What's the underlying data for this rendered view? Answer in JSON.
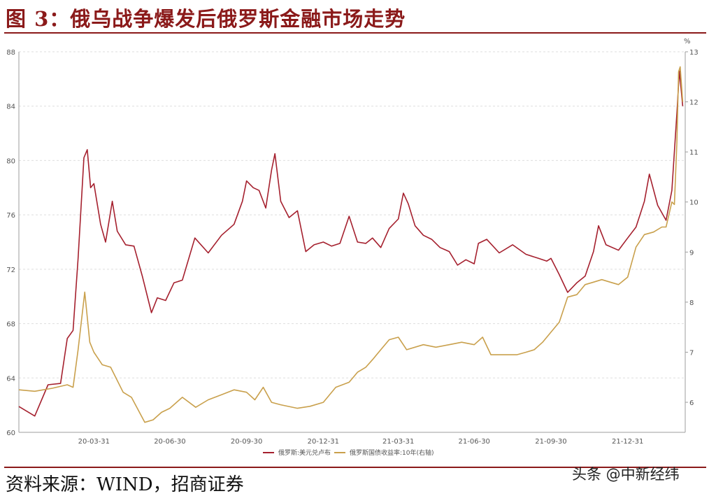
{
  "title": "图 3：俄乌战争爆发后俄罗斯金融市场走势",
  "source": "资料来源：WIND，招商证券",
  "watermark": "头条 @中新经纬",
  "colors": {
    "rub": "#a5202e",
    "bond": "#c9a04c",
    "accent": "#8b1a1a"
  },
  "chart_data": {
    "type": "line",
    "x_ticks": [
      "20-03-31",
      "20-06-30",
      "20-09-30",
      "20-12-31",
      "21-03-31",
      "21-06-30",
      "21-09-30",
      "21-12-31"
    ],
    "y_left": {
      "ticks": [
        60,
        64,
        68,
        72,
        76,
        80,
        84,
        88
      ],
      "range": [
        60,
        88
      ]
    },
    "y_right": {
      "ticks": [
        6,
        7,
        8,
        9,
        10,
        11,
        12,
        13
      ],
      "range": [
        5.4,
        13
      ],
      "unit": "%"
    },
    "legend_position": "bottom-center",
    "grid": "horizontal dashed",
    "series": [
      {
        "name": "俄罗斯:美元兑卢布",
        "axis": "left",
        "points": [
          [
            "2020-01-01",
            61.9
          ],
          [
            "2020-01-20",
            61.2
          ],
          [
            "2020-02-05",
            63.5
          ],
          [
            "2020-02-20",
            63.6
          ],
          [
            "2020-02-28",
            66.9
          ],
          [
            "2020-03-06",
            67.5
          ],
          [
            "2020-03-12",
            72.8
          ],
          [
            "2020-03-19",
            80.2
          ],
          [
            "2020-03-23",
            80.8
          ],
          [
            "2020-03-27",
            78.0
          ],
          [
            "2020-03-31",
            78.3
          ],
          [
            "2020-04-08",
            75.3
          ],
          [
            "2020-04-14",
            74.0
          ],
          [
            "2020-04-22",
            77.0
          ],
          [
            "2020-04-28",
            74.8
          ],
          [
            "2020-05-08",
            73.8
          ],
          [
            "2020-05-18",
            73.7
          ],
          [
            "2020-05-28",
            71.5
          ],
          [
            "2020-06-08",
            68.8
          ],
          [
            "2020-06-15",
            69.9
          ],
          [
            "2020-06-25",
            69.7
          ],
          [
            "2020-07-05",
            71.0
          ],
          [
            "2020-07-15",
            71.2
          ],
          [
            "2020-07-30",
            74.3
          ],
          [
            "2020-08-15",
            73.2
          ],
          [
            "2020-08-31",
            74.5
          ],
          [
            "2020-09-15",
            75.3
          ],
          [
            "2020-09-25",
            77.0
          ],
          [
            "2020-09-30",
            78.5
          ],
          [
            "2020-10-08",
            78.0
          ],
          [
            "2020-10-15",
            77.8
          ],
          [
            "2020-10-23",
            76.5
          ],
          [
            "2020-10-30",
            79.3
          ],
          [
            "2020-11-03",
            80.5
          ],
          [
            "2020-11-10",
            77.0
          ],
          [
            "2020-11-20",
            75.8
          ],
          [
            "2020-11-30",
            76.3
          ],
          [
            "2020-12-10",
            73.3
          ],
          [
            "2020-12-20",
            73.8
          ],
          [
            "2020-12-31",
            74.0
          ],
          [
            "2021-01-10",
            73.7
          ],
          [
            "2021-01-20",
            73.9
          ],
          [
            "2021-01-31",
            75.9
          ],
          [
            "2021-02-10",
            74.0
          ],
          [
            "2021-02-20",
            73.9
          ],
          [
            "2021-02-28",
            74.3
          ],
          [
            "2021-03-10",
            73.6
          ],
          [
            "2021-03-20",
            75.0
          ],
          [
            "2021-03-31",
            75.7
          ],
          [
            "2021-04-06",
            77.6
          ],
          [
            "2021-04-12",
            76.8
          ],
          [
            "2021-04-20",
            75.2
          ],
          [
            "2021-04-30",
            74.5
          ],
          [
            "2021-05-10",
            74.2
          ],
          [
            "2021-05-20",
            73.6
          ],
          [
            "2021-05-31",
            73.3
          ],
          [
            "2021-06-10",
            72.3
          ],
          [
            "2021-06-20",
            72.7
          ],
          [
            "2021-06-30",
            72.4
          ],
          [
            "2021-07-05",
            73.9
          ],
          [
            "2021-07-15",
            74.2
          ],
          [
            "2021-07-30",
            73.2
          ],
          [
            "2021-08-15",
            73.8
          ],
          [
            "2021-08-31",
            73.1
          ],
          [
            "2021-09-15",
            72.8
          ],
          [
            "2021-09-25",
            72.6
          ],
          [
            "2021-09-30",
            72.8
          ],
          [
            "2021-10-10",
            71.6
          ],
          [
            "2021-10-20",
            70.3
          ],
          [
            "2021-10-31",
            71.0
          ],
          [
            "2021-11-10",
            71.5
          ],
          [
            "2021-11-20",
            73.3
          ],
          [
            "2021-11-26",
            75.2
          ],
          [
            "2021-12-05",
            73.8
          ],
          [
            "2021-12-20",
            73.4
          ],
          [
            "2021-12-31",
            74.3
          ],
          [
            "2022-01-10",
            75.1
          ],
          [
            "2022-01-20",
            77.0
          ],
          [
            "2022-01-26",
            79.0
          ],
          [
            "2022-02-05",
            76.7
          ],
          [
            "2022-02-15",
            75.6
          ],
          [
            "2022-02-22",
            77.8
          ],
          [
            "2022-02-28",
            83.5
          ],
          [
            "2022-03-03",
            86.6
          ],
          [
            "2022-03-07",
            84.0
          ]
        ]
      },
      {
        "name": "俄罗斯国债收益率:10年(右轴)",
        "axis": "right",
        "points": [
          [
            "2020-01-01",
            6.25
          ],
          [
            "2020-01-20",
            6.22
          ],
          [
            "2020-02-10",
            6.28
          ],
          [
            "2020-02-28",
            6.35
          ],
          [
            "2020-03-06",
            6.3
          ],
          [
            "2020-03-12",
            7.05
          ],
          [
            "2020-03-20",
            8.2
          ],
          [
            "2020-03-26",
            7.2
          ],
          [
            "2020-03-31",
            7.0
          ],
          [
            "2020-04-10",
            6.75
          ],
          [
            "2020-04-20",
            6.7
          ],
          [
            "2020-05-05",
            6.2
          ],
          [
            "2020-05-15",
            6.1
          ],
          [
            "2020-05-31",
            5.6
          ],
          [
            "2020-06-10",
            5.65
          ],
          [
            "2020-06-20",
            5.8
          ],
          [
            "2020-06-30",
            5.88
          ],
          [
            "2020-07-15",
            6.1
          ],
          [
            "2020-07-31",
            5.9
          ],
          [
            "2020-08-15",
            6.05
          ],
          [
            "2020-08-31",
            6.15
          ],
          [
            "2020-09-15",
            6.25
          ],
          [
            "2020-09-30",
            6.2
          ],
          [
            "2020-10-10",
            6.05
          ],
          [
            "2020-10-20",
            6.3
          ],
          [
            "2020-10-30",
            6.0
          ],
          [
            "2020-11-10",
            5.95
          ],
          [
            "2020-11-30",
            5.88
          ],
          [
            "2020-12-15",
            5.92
          ],
          [
            "2020-12-31",
            6.0
          ],
          [
            "2021-01-15",
            6.3
          ],
          [
            "2021-01-31",
            6.4
          ],
          [
            "2021-02-10",
            6.6
          ],
          [
            "2021-02-20",
            6.7
          ],
          [
            "2021-02-28",
            6.85
          ],
          [
            "2021-03-10",
            7.05
          ],
          [
            "2021-03-20",
            7.25
          ],
          [
            "2021-03-31",
            7.3
          ],
          [
            "2021-04-10",
            7.05
          ],
          [
            "2021-04-30",
            7.15
          ],
          [
            "2021-05-15",
            7.1
          ],
          [
            "2021-05-31",
            7.15
          ],
          [
            "2021-06-15",
            7.2
          ],
          [
            "2021-06-30",
            7.15
          ],
          [
            "2021-07-10",
            7.3
          ],
          [
            "2021-07-20",
            6.95
          ],
          [
            "2021-08-05",
            6.95
          ],
          [
            "2021-08-20",
            6.95
          ],
          [
            "2021-08-31",
            7.0
          ],
          [
            "2021-09-10",
            7.05
          ],
          [
            "2021-09-20",
            7.2
          ],
          [
            "2021-09-30",
            7.4
          ],
          [
            "2021-10-10",
            7.6
          ],
          [
            "2021-10-20",
            8.1
          ],
          [
            "2021-10-31",
            8.15
          ],
          [
            "2021-11-10",
            8.35
          ],
          [
            "2021-11-20",
            8.4
          ],
          [
            "2021-11-30",
            8.45
          ],
          [
            "2021-12-10",
            8.4
          ],
          [
            "2021-12-20",
            8.35
          ],
          [
            "2021-12-31",
            8.5
          ],
          [
            "2022-01-10",
            9.1
          ],
          [
            "2022-01-20",
            9.35
          ],
          [
            "2022-01-31",
            9.4
          ],
          [
            "2022-02-10",
            9.5
          ],
          [
            "2022-02-15",
            9.5
          ],
          [
            "2022-02-22",
            10.0
          ],
          [
            "2022-02-25",
            9.95
          ],
          [
            "2022-02-28",
            11.2
          ],
          [
            "2022-03-02",
            12.6
          ],
          [
            "2022-03-04",
            12.7
          ],
          [
            "2022-03-07",
            12.0
          ]
        ]
      }
    ]
  }
}
